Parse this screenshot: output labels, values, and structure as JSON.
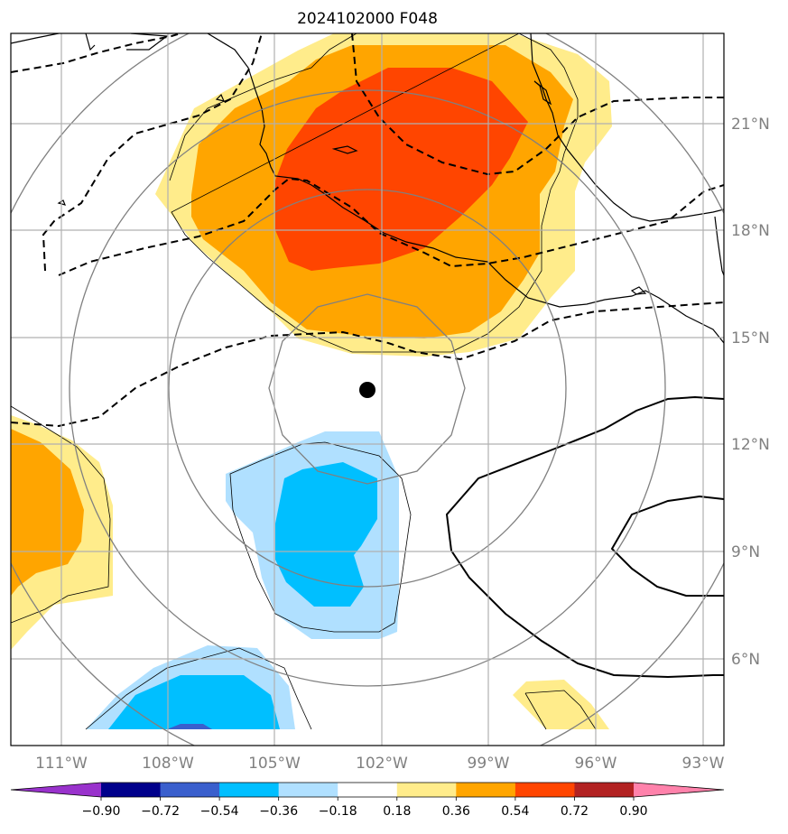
{
  "title": "2024102000 F048",
  "lon_labels": [
    "111°W",
    "108°W",
    "105°W",
    "102°W",
    "99°W",
    "96°W",
    "93°W"
  ],
  "lat_labels": [
    "21°N",
    "18°N",
    "15°N",
    "12°N",
    "9°N",
    "6°N"
  ],
  "colorbar": {
    "ticks": [
      "−0.90",
      "−0.72",
      "−0.54",
      "−0.36",
      "−0.18",
      "0.18",
      "0.36",
      "0.54",
      "0.72",
      "0.90"
    ],
    "colors": [
      "#9932cc",
      "#00008b",
      "#3a5fcd",
      "#00bfff",
      "#b0e0ff",
      "#ffffff",
      "#ffec8b",
      "#ffa500",
      "#ff4500",
      "#b22222",
      "#ff82ab"
    ]
  },
  "fill_colors": {
    "light_yellow": "#ffec8b",
    "orange": "#ffa500",
    "red_orange": "#ff4500",
    "light_blue": "#b0e0ff",
    "deep_sky_blue": "#00bfff",
    "royal_blue": "#3a5fcd"
  },
  "storm_center": {
    "lon": -102.4,
    "lat": 13.5
  }
}
